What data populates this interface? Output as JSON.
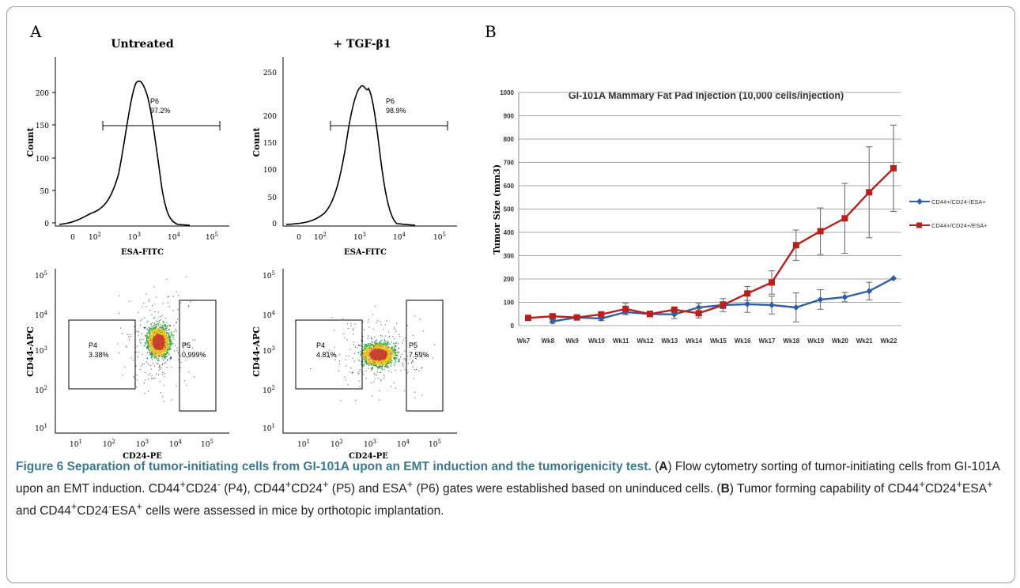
{
  "panel_a": {
    "label": "A",
    "untreated": {
      "title": "Untreated",
      "histogram": {
        "ylabel": "Count",
        "xlabel": "ESA-FITC",
        "y_ticks": [
          "0",
          "50",
          "100",
          "150",
          "200"
        ],
        "x_ticks": [
          "0",
          "10^2",
          "10^3",
          "10^4",
          "10^5"
        ],
        "gate": {
          "name": "P6",
          "percent": "97.2%"
        }
      },
      "dotplot": {
        "ylabel": "CD44-APC",
        "xlabel": "CD24-PE",
        "gates": [
          {
            "name": "P4",
            "percent": "3.38%"
          },
          {
            "name": "P5",
            "percent": "0.999%"
          }
        ]
      }
    },
    "tgf": {
      "title": "+ TGF-β1",
      "histogram": {
        "ylabel": "Count",
        "xlabel": "ESA-FITC",
        "y_ticks": [
          "0",
          "50",
          "100",
          "150",
          "200",
          "250"
        ],
        "x_ticks": [
          "0",
          "10^2",
          "10^3",
          "10^4",
          "10^5"
        ],
        "gate": {
          "name": "P6",
          "percent": "98.9%"
        }
      },
      "dotplot": {
        "ylabel": "CD44-APC",
        "xlabel": "CD24-PE",
        "gates": [
          {
            "name": "P4",
            "percent": "4.81%"
          },
          {
            "name": "P5",
            "percent": "7.59%"
          }
        ]
      }
    },
    "dot_ticks": [
      "1",
      "2",
      "3",
      "4",
      "5"
    ]
  },
  "panel_b": {
    "label": "B"
  },
  "chart_data": {
    "type": "line",
    "title": "GI-101A Mammary Fat Pad Injection (10,000 cells/injection)",
    "ylabel": "Tumor Size (mm3)",
    "xlabel": "",
    "ylim": [
      0,
      1000
    ],
    "y_ticks": [
      0,
      100,
      200,
      300,
      400,
      500,
      600,
      700,
      800,
      900,
      1000
    ],
    "grid": true,
    "legend_position": "right",
    "categories": [
      "Wk7",
      "Wk8",
      "Wk9",
      "Wk10",
      "Wk11",
      "Wk12",
      "Wk13",
      "Wk14",
      "Wk15",
      "Wk16",
      "Wk17",
      "Wk18",
      "Wk19",
      "Wk20",
      "Wk21",
      "Wk22"
    ],
    "series": [
      {
        "name": "CD44+/CD24-/ESA+",
        "color": "#2e5fa8",
        "marker": "diamond",
        "values": [
          null,
          18,
          35,
          30,
          58,
          50,
          48,
          78,
          88,
          92,
          88,
          78,
          112,
          122,
          148,
          203
        ],
        "errors": [
          null,
          8,
          8,
          8,
          10,
          12,
          18,
          18,
          15,
          35,
          38,
          62,
          42,
          20,
          38,
          0
        ]
      },
      {
        "name": "CD44+/CD24+/ESA+",
        "color": "#b8201c",
        "marker": "square",
        "values": [
          33,
          40,
          35,
          48,
          72,
          50,
          68,
          53,
          88,
          138,
          185,
          345,
          405,
          460,
          572,
          675
        ],
        "errors": [
          6,
          6,
          6,
          8,
          25,
          12,
          12,
          20,
          28,
          30,
          50,
          65,
          100,
          150,
          195,
          185
        ]
      }
    ]
  },
  "caption": {
    "title": "Figure 6 Separation of tumor-initiating cells from GI-101A upon an EMT induction and the tumorigenicity test.",
    "ref_a": "A",
    "text_a1": "Flow cytometry sorting of tumor-initiating cells from GI-101A upon an EMT induction.",
    "cd44": "CD44",
    "cd24": "CD24",
    "esa": "ESA",
    "plus": "+",
    "minus": "-",
    "p4": "(P4),",
    "p5": "(P5) and",
    "p6": "(P6) gates were established based on uninduced cells.",
    "ref_b": "B",
    "text_b1": "Tumor forming capability of",
    "and": "and",
    "text_b2": "cells were assessed in mice by orthotopic implantation."
  },
  "colors": {
    "accent": "#3a7a8c",
    "text": "#222222",
    "border": "#9a9a9a"
  }
}
